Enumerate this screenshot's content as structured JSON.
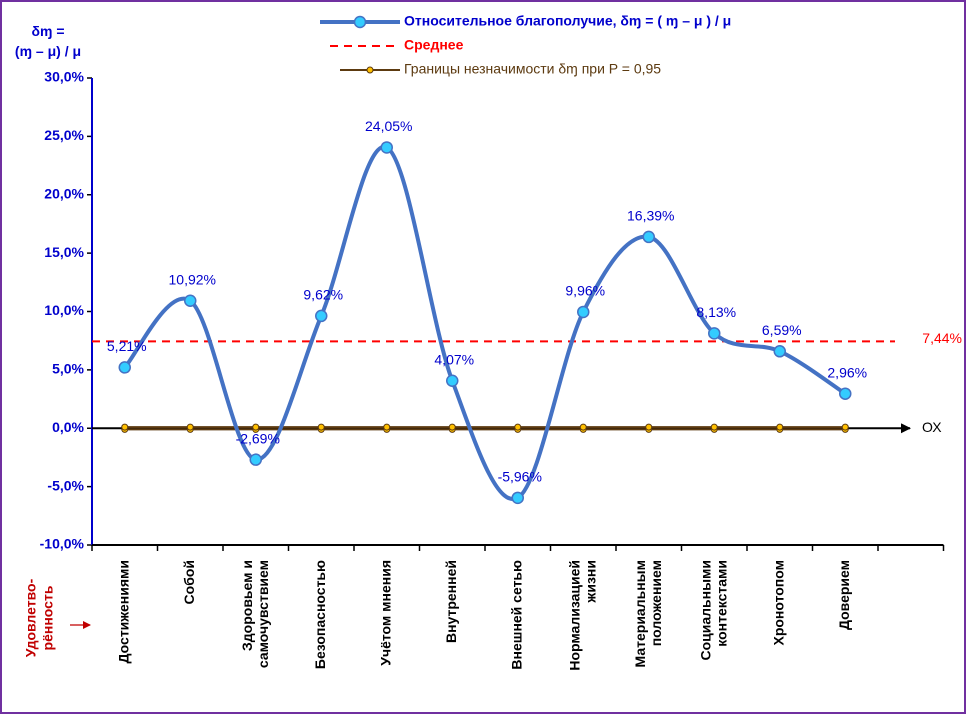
{
  "chart_data": {
    "type": "line",
    "y_axis_title": "δɱ =\n(ɱ – μ) / μ",
    "x_axis_title": "Удовлетво-\nрённость",
    "x_axis_end_label": "ОХ",
    "categories": [
      "Достижениями",
      "Собой",
      "Здоровьем и\nсамочувствием",
      "Безопасностью",
      "Учётом мнения",
      "Внутренней",
      "Внешней сетью",
      "Нормализацией\nжизни",
      "Материальным\nположением",
      "Социальными\nконтекстами",
      "Хронотопом",
      "Доверием"
    ],
    "series": [
      {
        "name": "Относительное благополучие, δɱ = ( ɱ – μ ) / μ",
        "color": "#4472c4",
        "marker_color": "#33ccff",
        "values": [
          5.21,
          10.92,
          -2.69,
          9.62,
          24.05,
          4.07,
          -5.96,
          9.96,
          16.39,
          8.13,
          6.59,
          2.96
        ],
        "value_labels": [
          "5,21%",
          "10,92%",
          "-2,69%",
          "9,62%",
          "24,05%",
          "4,07%",
          "-5,96%",
          "9,96%",
          "16,39%",
          "8,13%",
          "6,59%",
          "2,96%"
        ]
      }
    ],
    "mean": {
      "name": "Среднее",
      "color": "#ff0000",
      "value": 7.44,
      "label": "7,44%"
    },
    "bounds": {
      "name": "Границы незначимости δɱ при P = 0,95",
      "color": "#5c3a10",
      "marker_color": "#ffc000",
      "values": [
        -0.1,
        0.1
      ]
    },
    "ylim": [
      -10,
      30
    ],
    "yticks": [
      {
        "value": -10,
        "label": "-10,0%"
      },
      {
        "value": -5,
        "label": "-5,0%"
      },
      {
        "value": 0,
        "label": "0,0%"
      },
      {
        "value": 5,
        "label": "5,0%"
      },
      {
        "value": 10,
        "label": "10,0%"
      },
      {
        "value": 15,
        "label": "15,0%"
      },
      {
        "value": 20,
        "label": "20,0%"
      },
      {
        "value": 25,
        "label": "25,0%"
      },
      {
        "value": 30,
        "label": "30,0%"
      }
    ]
  }
}
